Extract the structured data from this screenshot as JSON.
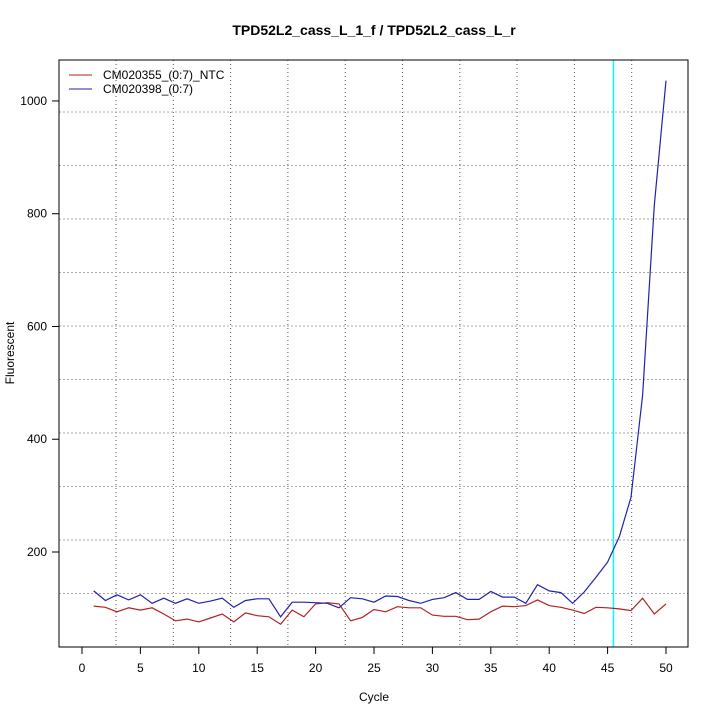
{
  "chart_data": {
    "type": "line",
    "title": "TPD52L2_cass_L_1_f / TPD52L2_cass_L_r",
    "xlabel": "Cycle",
    "ylabel": "Fluorescent",
    "xlim": [
      -2,
      52
    ],
    "ylim": [
      30,
      1070
    ],
    "x_ticks": [
      0,
      5,
      10,
      15,
      20,
      25,
      30,
      35,
      40,
      45,
      50
    ],
    "y_ticks": [
      200,
      400,
      600,
      800,
      1000
    ],
    "threshold_cycle": 45.5,
    "threshold_color": "#00ffff",
    "grid": true,
    "legend_position": "top-left",
    "x": [
      1,
      2,
      3,
      4,
      5,
      6,
      7,
      8,
      9,
      10,
      11,
      12,
      13,
      14,
      15,
      16,
      17,
      18,
      19,
      20,
      21,
      22,
      23,
      24,
      25,
      26,
      27,
      28,
      29,
      30,
      31,
      32,
      33,
      34,
      35,
      36,
      37,
      38,
      39,
      40,
      41,
      42,
      43,
      44,
      45,
      46,
      47,
      48,
      49,
      50
    ],
    "series": [
      {
        "name": "CM020355_(0:7)_NTC",
        "color": "#b22222",
        "values": [
          104,
          102,
          94,
          101,
          97,
          101,
          90,
          78,
          81,
          76,
          83,
          90,
          76,
          92,
          87,
          85,
          72,
          97,
          85,
          108,
          110,
          108,
          78,
          84,
          98,
          94,
          103,
          101,
          101,
          88,
          86,
          86,
          80,
          81,
          94,
          104,
          103,
          105,
          115,
          105,
          102,
          97,
          91,
          102,
          101,
          99,
          96,
          118,
          90,
          108
        ]
      },
      {
        "name": "CM020398_(0:7)",
        "color": "#2222aa",
        "values": [
          131,
          114,
          124,
          115,
          124,
          109,
          118,
          109,
          117,
          109,
          113,
          118,
          102,
          114,
          117,
          117,
          85,
          111,
          111,
          110,
          109,
          101,
          119,
          117,
          111,
          122,
          121,
          114,
          109,
          116,
          119,
          128,
          116,
          116,
          130,
          120,
          120,
          109,
          142,
          131,
          128,
          109,
          129,
          155,
          182,
          227,
          297,
          478,
          815,
          1036
        ]
      }
    ]
  }
}
